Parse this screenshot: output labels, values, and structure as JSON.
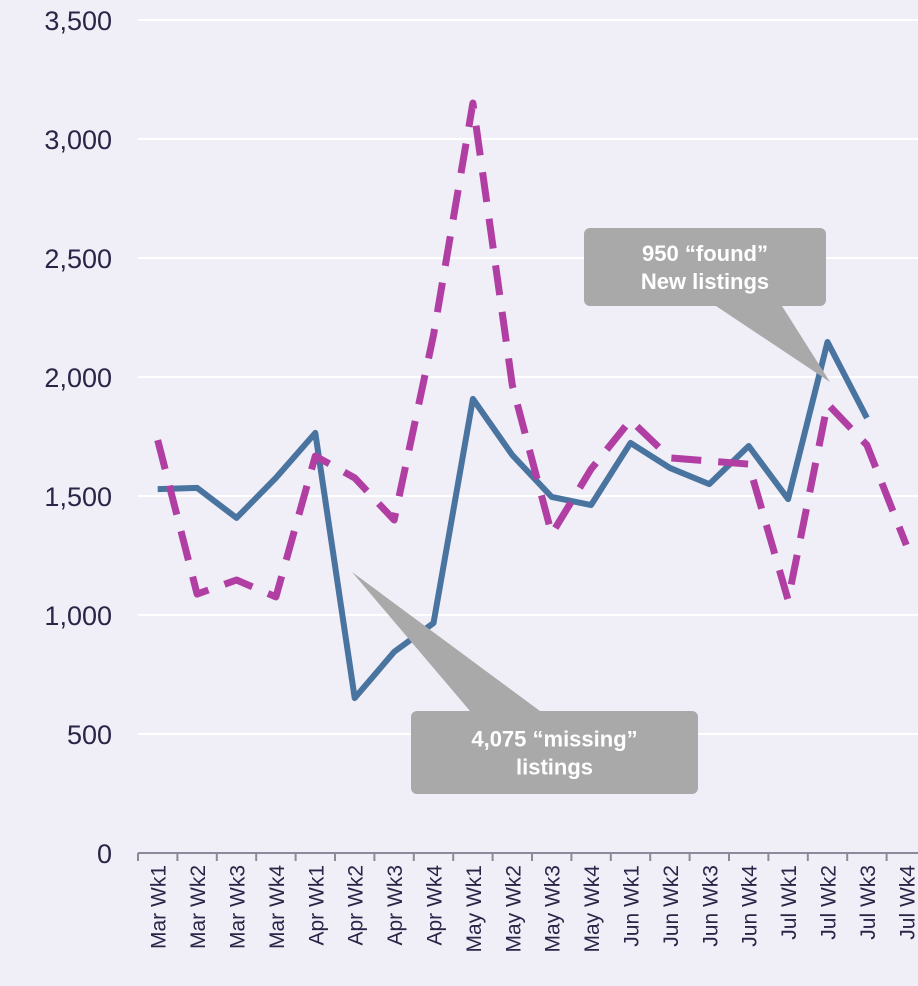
{
  "chart_data": {
    "type": "line",
    "categories": [
      "Mar Wk1",
      "Mar Wk2",
      "Mar Wk3",
      "Mar Wk4",
      "Apr Wk1",
      "Apr Wk2",
      "Apr Wk3",
      "Apr Wk4",
      "May Wk1",
      "May Wk2",
      "May Wk3",
      "May Wk4",
      "Jun Wk1",
      "Jun Wk2",
      "Jun Wk3",
      "Jun Wk4",
      "Jul Wk1",
      "Jul Wk2",
      "Jul Wk3",
      "Jul Wk4"
    ],
    "series": [
      {
        "color": "#4a74a0",
        "dashed": false,
        "values": [
          1529,
          1534,
          1408,
          1576,
          1765,
          651,
          845,
          966,
          1908,
          1672,
          1496,
          1462,
          1723,
          1618,
          1550,
          1710,
          1487,
          2147,
          1828,
          null
        ]
      },
      {
        "color": "#b13fa3",
        "dashed": true,
        "values": [
          1735,
          1088,
          1147,
          1076,
          1668,
          1576,
          1399,
          2176,
          3151,
          1966,
          1340,
          1613,
          1819,
          1660,
          1647,
          1634,
          1063,
          1887,
          1714,
          1294
        ]
      }
    ],
    "ylim": [
      0,
      3500
    ],
    "yticks": [
      0,
      {
        "value": 500,
        "label": "500"
      },
      {
        "value": 1000,
        "label": "1,000"
      },
      {
        "value": 1500,
        "label": "1,500"
      },
      {
        "value": 2000,
        "label": "2,000"
      },
      {
        "value": 2500,
        "label": "2,500"
      },
      {
        "value": 3000,
        "label": "3,000"
      },
      {
        "value": 3500,
        "label": "3,500"
      }
    ],
    "grid": true,
    "annotations": [
      {
        "lines": [
          "950 “found”",
          "New listings"
        ]
      },
      {
        "lines": [
          "4,075 “missing”",
          "listings"
        ]
      }
    ]
  }
}
